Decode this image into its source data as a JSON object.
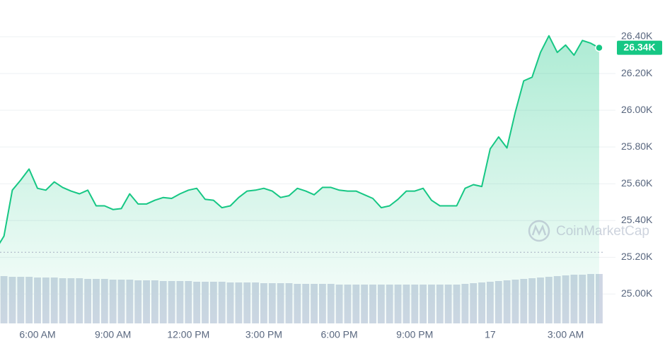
{
  "chart_data": {
    "type": "line",
    "area": true,
    "watermark": "CoinMarketCap",
    "categories": [
      null,
      null,
      null,
      null,
      null,
      "6:00 AM",
      null,
      null,
      null,
      null,
      null,
      null,
      null,
      null,
      "9:00 AM",
      null,
      null,
      null,
      null,
      null,
      null,
      null,
      null,
      "12:00 PM",
      null,
      null,
      null,
      null,
      null,
      null,
      null,
      null,
      "3:00 PM",
      null,
      null,
      null,
      null,
      null,
      null,
      null,
      null,
      "6:00 PM",
      null,
      null,
      null,
      null,
      null,
      null,
      null,
      null,
      "9:00 PM",
      null,
      null,
      null,
      null,
      null,
      null,
      null,
      null,
      "17",
      null,
      null,
      null,
      null,
      null,
      null,
      null,
      null,
      "3:00 AM",
      null,
      null,
      null,
      null
    ],
    "series": [
      {
        "name": "Price",
        "color": "#16c784",
        "values": [
          25240,
          25315,
          25565,
          25620,
          25680,
          25575,
          25565,
          25610,
          25580,
          25560,
          25545,
          25565,
          25480,
          25480,
          25460,
          25465,
          25545,
          25490,
          25490,
          25510,
          25525,
          25520,
          25545,
          25565,
          25575,
          25515,
          25510,
          25470,
          25480,
          25525,
          25560,
          25565,
          25575,
          25560,
          25525,
          25535,
          25575,
          25560,
          25540,
          25580,
          25580,
          25565,
          25560,
          25560,
          25540,
          25520,
          25470,
          25480,
          25515,
          25560,
          25560,
          25575,
          25510,
          25480,
          25480,
          25480,
          25575,
          25595,
          25585,
          25790,
          25855,
          25795,
          25990,
          26160,
          26180,
          26315,
          26405,
          26315,
          26355,
          26300,
          26380,
          26365,
          26340
        ],
        "value_labels": [
          null,
          null,
          null,
          null,
          null,
          null,
          null,
          null,
          null,
          null,
          null,
          null,
          null,
          null,
          null,
          null,
          null,
          null,
          null,
          null,
          null,
          null,
          null,
          null,
          null,
          null,
          null,
          null,
          null,
          null,
          null,
          null,
          null,
          null,
          null,
          null,
          null,
          null,
          null,
          null,
          null,
          null,
          null,
          null,
          null,
          null,
          null,
          null,
          null,
          null,
          null,
          null,
          null,
          null,
          null,
          null,
          null,
          null,
          null,
          null,
          null,
          null,
          null,
          null,
          null,
          null,
          null,
          null,
          null,
          null,
          null,
          null,
          "26.34K"
        ]
      },
      {
        "name": "Volume",
        "color": "#cfd6e4",
        "axis": "y2",
        "values": [
          67,
          67,
          66,
          66,
          66,
          65,
          65,
          65,
          64,
          64,
          64,
          63,
          63,
          63,
          62,
          62,
          62,
          61,
          61,
          61,
          60,
          60,
          60,
          60,
          59,
          59,
          59,
          59,
          58,
          58,
          58,
          58,
          57,
          57,
          57,
          57,
          56,
          56,
          56,
          56,
          56,
          55,
          55,
          55,
          55,
          55,
          55,
          55,
          55,
          55,
          55,
          55,
          55,
          55,
          55,
          55,
          56,
          57,
          58,
          59,
          60,
          61,
          62,
          63,
          64,
          65,
          66,
          67,
          68,
          69,
          69,
          70,
          70
        ]
      }
    ],
    "baseline": 25227,
    "ylim": [
      24840,
      26600
    ],
    "yticks": [
      {
        "value": 25000,
        "label": "25.00K"
      },
      {
        "value": 25200,
        "label": "25.20K"
      },
      {
        "value": 25400,
        "label": "25.40K"
      },
      {
        "value": 25600,
        "label": "25.60K"
      },
      {
        "value": 25800,
        "label": "25.80K"
      },
      {
        "value": 26000,
        "label": "26.00K"
      },
      {
        "value": 26200,
        "label": "26.20K"
      },
      {
        "value": 26400,
        "label": "26.40K"
      }
    ],
    "y2lim": [
      0,
      100
    ],
    "grid": true
  }
}
